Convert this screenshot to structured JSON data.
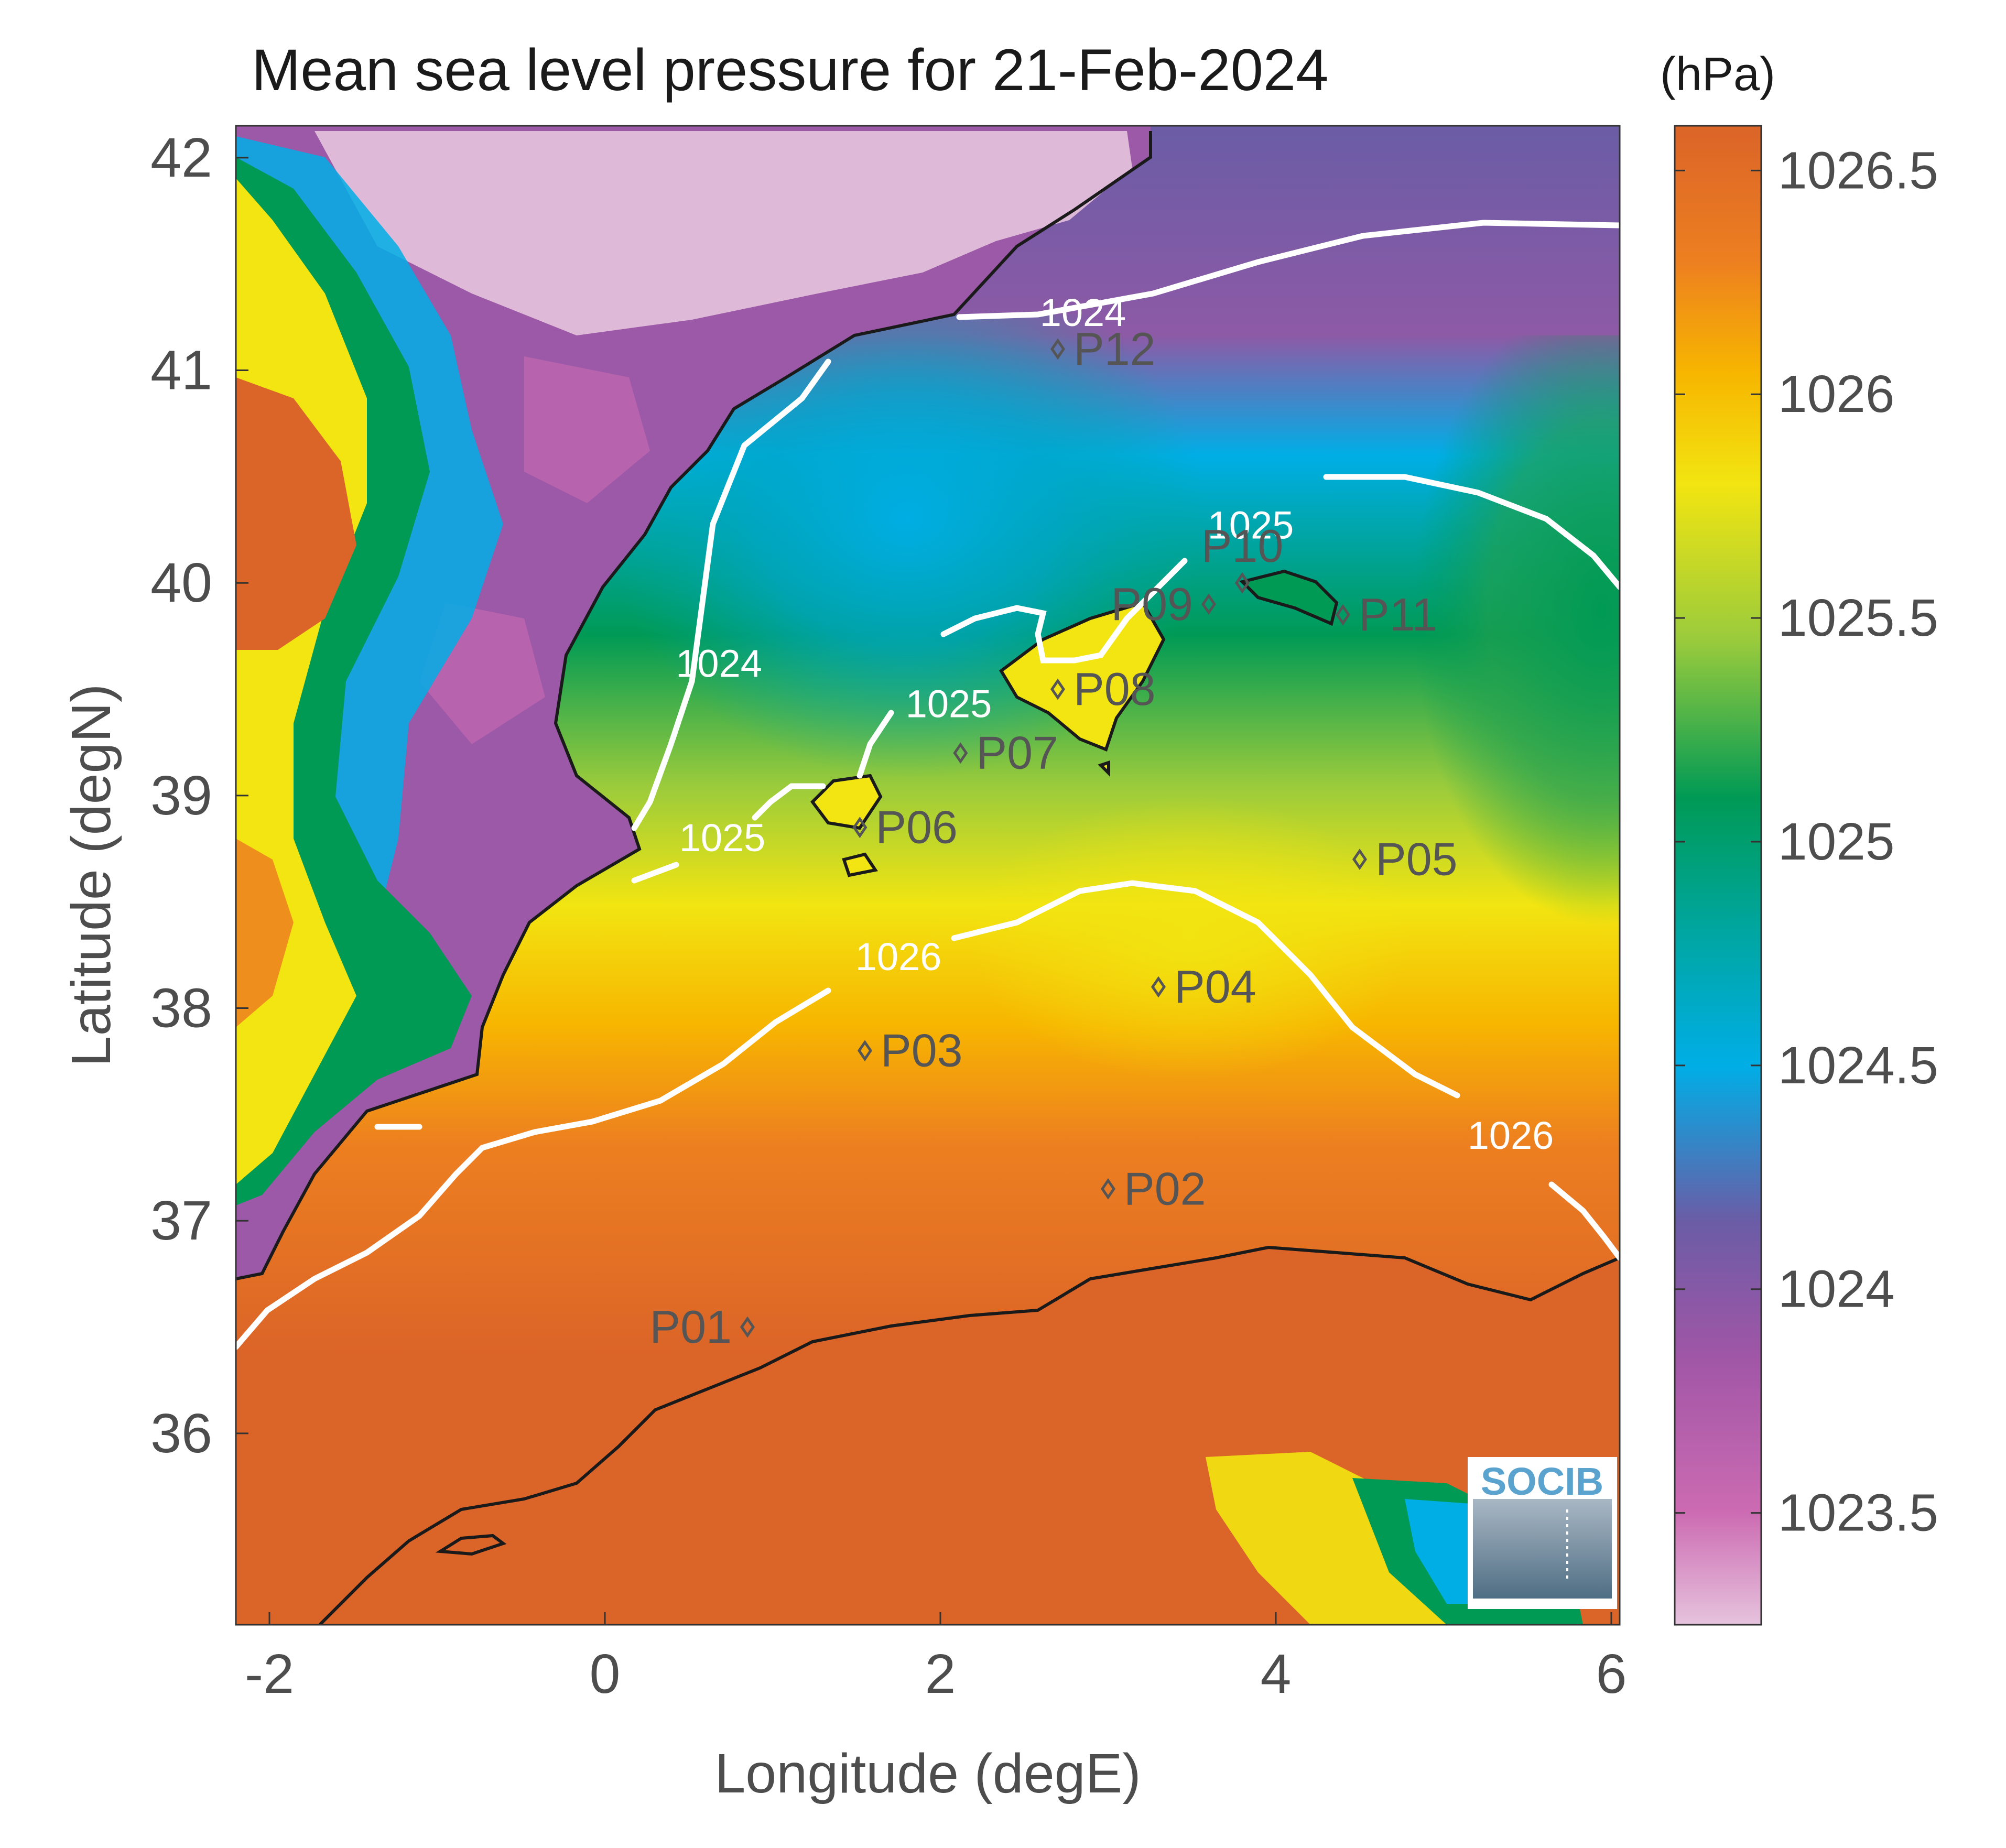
{
  "title": "Mean sea level pressure for 21-Feb-2024",
  "units_label": "(hPa)",
  "xlabel": "Longitude (degE)",
  "ylabel": "Latitude (degN)",
  "logo_text": "SOCIB",
  "chart_data": {
    "type": "heatmap",
    "title": "Mean sea level pressure for 21-Feb-2024",
    "xlabel": "Longitude (degE)",
    "ylabel": "Latitude (degN)",
    "xlim": [
      -2.2,
      6.05
    ],
    "ylim": [
      35.1,
      42.15
    ],
    "xticks": [
      {
        "value": -2,
        "label": "-2"
      },
      {
        "value": 0,
        "label": "0"
      },
      {
        "value": 2,
        "label": "2"
      },
      {
        "value": 4,
        "label": "4"
      },
      {
        "value": 6,
        "label": "6"
      }
    ],
    "yticks": [
      {
        "value": 36,
        "label": "36"
      },
      {
        "value": 37,
        "label": "37"
      },
      {
        "value": 38,
        "label": "38"
      },
      {
        "value": 39,
        "label": "39"
      },
      {
        "value": 40,
        "label": "40"
      },
      {
        "value": 41,
        "label": "41"
      },
      {
        "value": 42,
        "label": "42"
      }
    ],
    "colorbar": {
      "units": "(hPa)",
      "range": [
        1023.25,
        1026.6
      ],
      "ticks": [
        {
          "value": 1023.5,
          "label": "1023.5"
        },
        {
          "value": 1024,
          "label": "1024"
        },
        {
          "value": 1024.5,
          "label": "1024.5"
        },
        {
          "value": 1025,
          "label": "1025"
        },
        {
          "value": 1025.5,
          "label": "1025.5"
        },
        {
          "value": 1026,
          "label": "1026"
        },
        {
          "value": 1026.5,
          "label": "1026.5"
        }
      ],
      "stops": [
        {
          "value": 1023.25,
          "color": "#e6c3dd"
        },
        {
          "value": 1023.5,
          "color": "#cc6bb2"
        },
        {
          "value": 1023.85,
          "color": "#a056a6"
        },
        {
          "value": 1024.15,
          "color": "#6b5ca6"
        },
        {
          "value": 1024.5,
          "color": "#00aee6"
        },
        {
          "value": 1024.8,
          "color": "#00a6a0"
        },
        {
          "value": 1025.1,
          "color": "#009a55"
        },
        {
          "value": 1025.45,
          "color": "#9acb3c"
        },
        {
          "value": 1025.8,
          "color": "#f2e511"
        },
        {
          "value": 1026.05,
          "color": "#f7b500"
        },
        {
          "value": 1026.3,
          "color": "#ed7f20"
        },
        {
          "value": 1026.6,
          "color": "#db6428"
        }
      ]
    },
    "contours": [
      {
        "level": 1024,
        "label": "1024",
        "label_positions": [
          {
            "lon": 2.85,
            "lat": 41.27
          },
          {
            "lon": 0.68,
            "lat": 39.62
          }
        ]
      },
      {
        "level": 1025,
        "label": "1025",
        "label_positions": [
          {
            "lon": 3.85,
            "lat": 40.27
          },
          {
            "lon": 2.05,
            "lat": 39.43
          },
          {
            "lon": 0.7,
            "lat": 38.8
          }
        ]
      },
      {
        "level": 1026,
        "label": "1026",
        "label_positions": [
          {
            "lon": 1.75,
            "lat": 38.24
          },
          {
            "lon": 5.4,
            "lat": 37.4
          }
        ]
      }
    ],
    "stations": [
      {
        "name": "P01",
        "lon": 0.85,
        "lat": 36.5,
        "label_side": "left"
      },
      {
        "name": "P02",
        "lon": 3.0,
        "lat": 37.15,
        "label_side": "right"
      },
      {
        "name": "P03",
        "lon": 1.55,
        "lat": 37.8,
        "label_side": "right"
      },
      {
        "name": "P04",
        "lon": 3.3,
        "lat": 38.1,
        "label_side": "right"
      },
      {
        "name": "P05",
        "lon": 4.5,
        "lat": 38.7,
        "label_side": "right"
      },
      {
        "name": "P06",
        "lon": 1.52,
        "lat": 38.85,
        "label_side": "right"
      },
      {
        "name": "P07",
        "lon": 2.12,
        "lat": 39.2,
        "label_side": "right"
      },
      {
        "name": "P08",
        "lon": 2.7,
        "lat": 39.5,
        "label_side": "right"
      },
      {
        "name": "P09",
        "lon": 3.6,
        "lat": 39.9,
        "label_side": "left"
      },
      {
        "name": "P10",
        "lon": 3.8,
        "lat": 40.0,
        "label_side": "above"
      },
      {
        "name": "P11",
        "lon": 4.4,
        "lat": 39.85,
        "label_side": "right"
      },
      {
        "name": "P12",
        "lon": 2.7,
        "lat": 41.1,
        "label_side": "right"
      }
    ]
  }
}
